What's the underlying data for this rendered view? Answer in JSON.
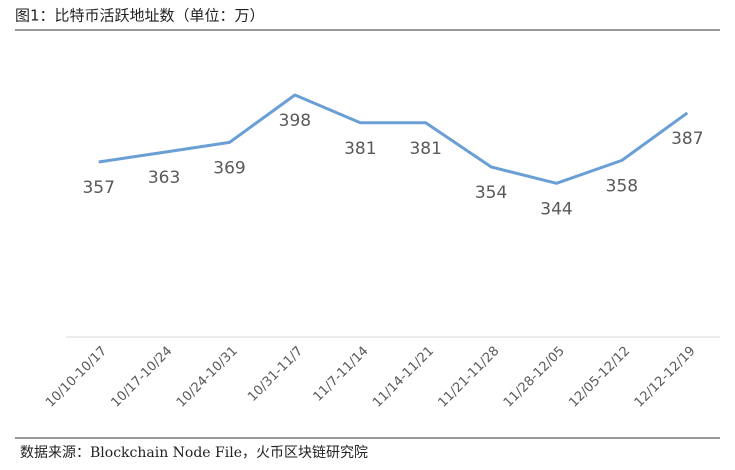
{
  "chart_data": {
    "type": "line",
    "title": "图1：比特币活跃地址数（单位：万）",
    "source": "数据来源：Blockchain Node File，火币区块链研究院",
    "categories": [
      "10/10-10/17",
      "10/17-10/24",
      "10/24-10/31",
      "10/31-11/7",
      "11/7-11/14",
      "11/14-11/21",
      "11/21-11/28",
      "11/28-12/05",
      "12/05-12/12",
      "12/12-12/19"
    ],
    "values": [
      357,
      363,
      369,
      398,
      381,
      381,
      354,
      344,
      358,
      387
    ],
    "color": "#6a9fd5",
    "ylim": [
      250,
      420
    ]
  }
}
